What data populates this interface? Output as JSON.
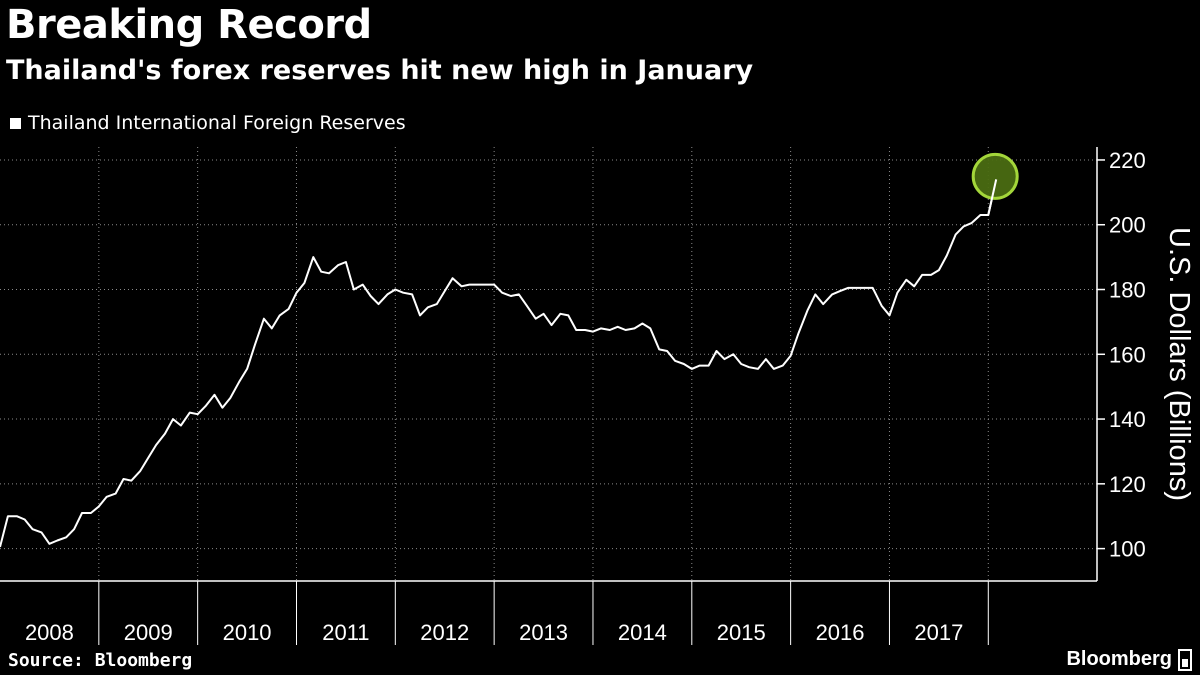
{
  "header": {
    "title": "Breaking Record",
    "subtitle": "Thailand's forex reserves hit new high in January"
  },
  "footer": {
    "source": "Source: Bloomberg",
    "brand": "Bloomberg"
  },
  "colors": {
    "background": "#000000",
    "line": "#ffffff",
    "highlight_fill": "#4a6b12",
    "highlight_stroke": "#a3d63a",
    "grid": "#8a8a8a"
  },
  "chart_data": {
    "type": "line",
    "title": "Breaking Record",
    "subtitle": "Thailand's forex reserves hit new high in January",
    "ylabel": "U.S. Dollars (Billions)",
    "xlabel": "",
    "ylim": [
      90,
      224
    ],
    "yticks": [
      100,
      120,
      140,
      160,
      180,
      200,
      220
    ],
    "xlim": [
      2008.0,
      2019.1
    ],
    "xticks": [
      "2008",
      "2009",
      "2010",
      "2011",
      "2012",
      "2013",
      "2014",
      "2015",
      "2016",
      "2017"
    ],
    "grid": true,
    "legend_position": "top-left",
    "annotation": "circle highlighting latest value",
    "series": [
      {
        "name": "Thailand International Foreign Reserves",
        "x": [
          2008.0,
          2008.08,
          2008.17,
          2008.25,
          2008.33,
          2008.42,
          2008.5,
          2008.58,
          2008.67,
          2008.75,
          2008.83,
          2008.92,
          2009.0,
          2009.08,
          2009.17,
          2009.25,
          2009.33,
          2009.42,
          2009.5,
          2009.58,
          2009.67,
          2009.75,
          2009.83,
          2009.92,
          2010.0,
          2010.08,
          2010.17,
          2010.25,
          2010.33,
          2010.42,
          2010.5,
          2010.58,
          2010.67,
          2010.75,
          2010.83,
          2010.92,
          2011.0,
          2011.08,
          2011.17,
          2011.25,
          2011.33,
          2011.42,
          2011.5,
          2011.58,
          2011.67,
          2011.75,
          2011.83,
          2011.92,
          2012.0,
          2012.08,
          2012.17,
          2012.25,
          2012.33,
          2012.42,
          2012.5,
          2012.58,
          2012.67,
          2012.75,
          2012.83,
          2012.92,
          2013.0,
          2013.08,
          2013.17,
          2013.25,
          2013.33,
          2013.42,
          2013.5,
          2013.58,
          2013.67,
          2013.75,
          2013.83,
          2013.92,
          2014.0,
          2014.08,
          2014.17,
          2014.25,
          2014.33,
          2014.42,
          2014.5,
          2014.58,
          2014.67,
          2014.75,
          2014.83,
          2014.92,
          2015.0,
          2015.08,
          2015.17,
          2015.25,
          2015.33,
          2015.42,
          2015.5,
          2015.58,
          2015.67,
          2015.75,
          2015.83,
          2015.92,
          2016.0,
          2016.08,
          2016.17,
          2016.25,
          2016.33,
          2016.42,
          2016.5,
          2016.58,
          2016.67,
          2016.75,
          2016.83,
          2016.92,
          2017.0,
          2017.08,
          2017.17,
          2017.25,
          2017.33,
          2017.42,
          2017.5,
          2017.58,
          2017.67,
          2017.75,
          2017.83,
          2017.92,
          2018.0,
          2018.08
        ],
        "values": [
          100.5,
          110,
          110,
          109,
          106,
          105,
          101.5,
          102.5,
          103.5,
          106,
          111,
          111,
          113,
          116,
          117,
          121.5,
          121,
          124,
          128,
          132,
          135.5,
          140,
          138,
          142,
          141.5,
          144,
          147.5,
          143.5,
          146.5,
          151.5,
          155.5,
          163,
          171,
          168,
          172,
          174,
          179,
          182,
          190,
          185.5,
          185,
          187.5,
          188.5,
          180,
          181.5,
          178,
          175.5,
          178.5,
          180,
          179,
          178.5,
          172,
          174.5,
          175.5,
          179.5,
          183.5,
          181,
          181.5,
          181.5,
          181.5,
          181.5,
          179,
          178,
          178.5,
          175,
          171,
          172.5,
          169,
          172.5,
          172,
          167.5,
          167.5,
          167,
          168,
          167.5,
          168.5,
          167.5,
          168,
          169.5,
          168,
          161.5,
          161,
          158,
          157,
          155.5,
          156.5,
          156.5,
          161,
          158.5,
          160,
          157,
          156,
          155.5,
          158.5,
          155.5,
          156.5,
          159.5,
          166.5,
          173.5,
          178.5,
          175.5,
          178.5,
          179.5,
          180.5,
          180.5,
          180.5,
          180.5,
          175,
          172,
          179,
          183,
          181,
          184.5,
          184.5,
          186,
          190.5,
          197,
          199.5,
          200.5,
          203,
          203,
          214
        ]
      }
    ]
  }
}
